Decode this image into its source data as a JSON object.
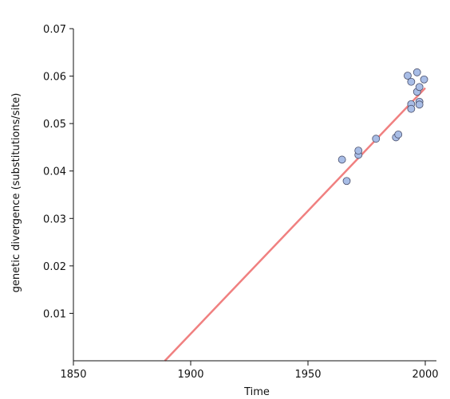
{
  "chart_data": {
    "type": "scatter",
    "title": "",
    "xlabel": "Time",
    "ylabel": "genetic divergence  (substitutions/site)",
    "xlim": [
      1850,
      2003
    ],
    "ylim": [
      0,
      0.07
    ],
    "x_ticks": [
      1850,
      1900,
      1950,
      2000
    ],
    "x_tick_labels": [
      "1850",
      "1900",
      "1950",
      "2000"
    ],
    "y_ticks": [
      0.01,
      0.02,
      0.03,
      0.04,
      0.05,
      0.06,
      0.07
    ],
    "y_tick_labels": [
      "0.01",
      "0.02",
      "0.03",
      "0.04",
      "0.05",
      "0.06",
      "0.07"
    ],
    "grid": false,
    "colors": {
      "points_fill": "#a8bde6",
      "points_stroke": "#4a4f6b",
      "line": "#f08080",
      "axis": "#111111"
    },
    "series": [
      {
        "type": "scatter",
        "points": [
          [
            1964.5,
            0.0424
          ],
          [
            1966.5,
            0.0379
          ],
          [
            1971.5,
            0.0434
          ],
          [
            1971.5,
            0.0443
          ],
          [
            1979,
            0.0468
          ],
          [
            1987.5,
            0.0471
          ],
          [
            1988.5,
            0.0477
          ],
          [
            1992.5,
            0.0601
          ],
          [
            1994,
            0.0588
          ],
          [
            1994,
            0.0541
          ],
          [
            1994,
            0.0531
          ],
          [
            1996.5,
            0.0608
          ],
          [
            1996.5,
            0.0567
          ],
          [
            1997.5,
            0.0577
          ],
          [
            1997.5,
            0.0546
          ],
          [
            1997.5,
            0.054
          ],
          [
            1999.5,
            0.0593
          ]
        ]
      },
      {
        "type": "line",
        "points": [
          [
            1889,
            0
          ],
          [
            2000,
            0.0575
          ]
        ]
      }
    ]
  }
}
